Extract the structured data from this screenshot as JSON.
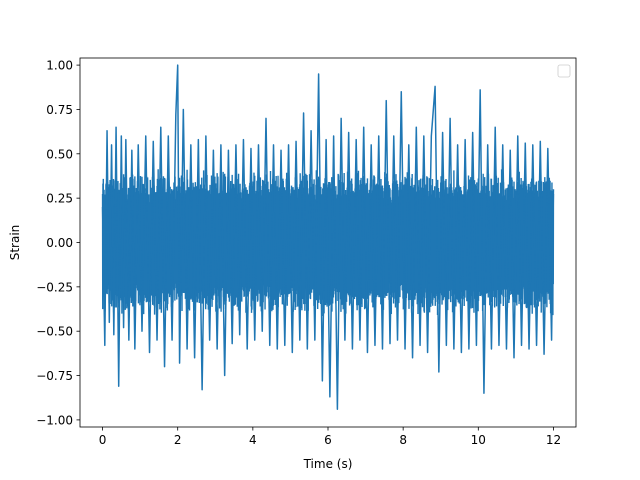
{
  "chart_data": {
    "type": "line",
    "title": "",
    "xlabel": "Time (s)",
    "ylabel": "Strain",
    "xlim": [
      -0.6,
      12.6
    ],
    "ylim": [
      -1.04,
      1.04
    ],
    "xticks": [
      0,
      2,
      4,
      6,
      8,
      10,
      12
    ],
    "yticks": [
      -1.0,
      -0.75,
      -0.5,
      -0.25,
      0.0,
      0.25,
      0.5,
      0.75,
      1.0
    ],
    "ytick_labels": [
      "−1.00",
      "−0.75",
      "−0.50",
      "−0.25",
      "0.00",
      "0.25",
      "0.50",
      "0.75",
      "1.00"
    ],
    "grid": false,
    "legend": {
      "placement": "top-right",
      "entries": []
    },
    "colors": {
      "series": "#1f77b4"
    },
    "series": [
      {
        "x": [
          0.0,
          0.06,
          0.12,
          0.18,
          0.24,
          0.3,
          0.36,
          0.43,
          0.5,
          0.56,
          0.62,
          0.7,
          0.78,
          0.86,
          0.95,
          1.05,
          1.15,
          1.25,
          1.35,
          1.45,
          1.55,
          1.65,
          1.75,
          1.85,
          1.95,
          2.0,
          2.05,
          2.15,
          2.25,
          2.35,
          2.45,
          2.55,
          2.65,
          2.75,
          2.85,
          2.95,
          3.05,
          3.15,
          3.25,
          3.35,
          3.45,
          3.55,
          3.65,
          3.75,
          3.85,
          3.95,
          4.05,
          4.15,
          4.25,
          4.35,
          4.45,
          4.55,
          4.65,
          4.75,
          4.85,
          4.95,
          5.05,
          5.15,
          5.25,
          5.35,
          5.45,
          5.55,
          5.65,
          5.75,
          5.85,
          5.95,
          6.05,
          6.15,
          6.25,
          6.35,
          6.45,
          6.55,
          6.65,
          6.75,
          6.85,
          6.95,
          7.05,
          7.15,
          7.25,
          7.35,
          7.45,
          7.55,
          7.65,
          7.75,
          7.85,
          7.95,
          8.05,
          8.15,
          8.25,
          8.35,
          8.45,
          8.55,
          8.65,
          8.75,
          8.85,
          8.95,
          9.05,
          9.15,
          9.25,
          9.35,
          9.45,
          9.55,
          9.65,
          9.75,
          9.85,
          9.95,
          10.05,
          10.15,
          10.25,
          10.35,
          10.45,
          10.55,
          10.65,
          10.75,
          10.85,
          10.95,
          11.05,
          11.15,
          11.25,
          11.35,
          11.45,
          11.55,
          11.65,
          11.75,
          11.85,
          11.95,
          12.0
        ],
        "y": [
          0.2,
          -0.58,
          0.63,
          -0.45,
          0.55,
          -0.52,
          0.65,
          -0.81,
          0.6,
          -0.48,
          0.58,
          -0.55,
          0.52,
          -0.6,
          0.55,
          -0.5,
          0.6,
          -0.62,
          0.57,
          -0.55,
          0.65,
          -0.7,
          0.6,
          -0.55,
          0.72,
          1.0,
          -0.68,
          0.75,
          -0.6,
          0.55,
          -0.65,
          0.58,
          -0.83,
          0.6,
          -0.55,
          0.52,
          -0.6,
          0.55,
          -0.75,
          0.52,
          -0.57,
          0.55,
          -0.52,
          0.58,
          -0.6,
          0.53,
          -0.55,
          0.55,
          -0.5,
          0.7,
          -0.58,
          0.55,
          -0.6,
          0.52,
          -0.58,
          0.55,
          -0.62,
          0.57,
          -0.55,
          0.73,
          -0.6,
          0.63,
          -0.55,
          0.95,
          -0.78,
          0.58,
          -0.87,
          0.6,
          -0.94,
          0.7,
          -0.55,
          0.62,
          -0.6,
          0.58,
          -0.55,
          0.65,
          -0.62,
          0.55,
          -0.58,
          0.6,
          -0.6,
          0.8,
          -0.57,
          0.6,
          -0.55,
          0.85,
          -0.6,
          0.55,
          -0.65,
          0.65,
          -0.58,
          0.6,
          -0.62,
          0.6,
          0.88,
          -0.73,
          0.62,
          -0.58,
          0.7,
          -0.6,
          0.55,
          -0.62,
          0.58,
          -0.6,
          0.62,
          -0.58,
          0.86,
          -0.85,
          0.55,
          -0.6,
          0.65,
          -0.58,
          0.55,
          -0.6,
          0.52,
          -0.65,
          0.6,
          -0.58,
          0.56,
          -0.6,
          0.55,
          -0.58,
          0.57,
          -0.63,
          0.53,
          -0.55,
          0.3
        ]
      }
    ]
  }
}
